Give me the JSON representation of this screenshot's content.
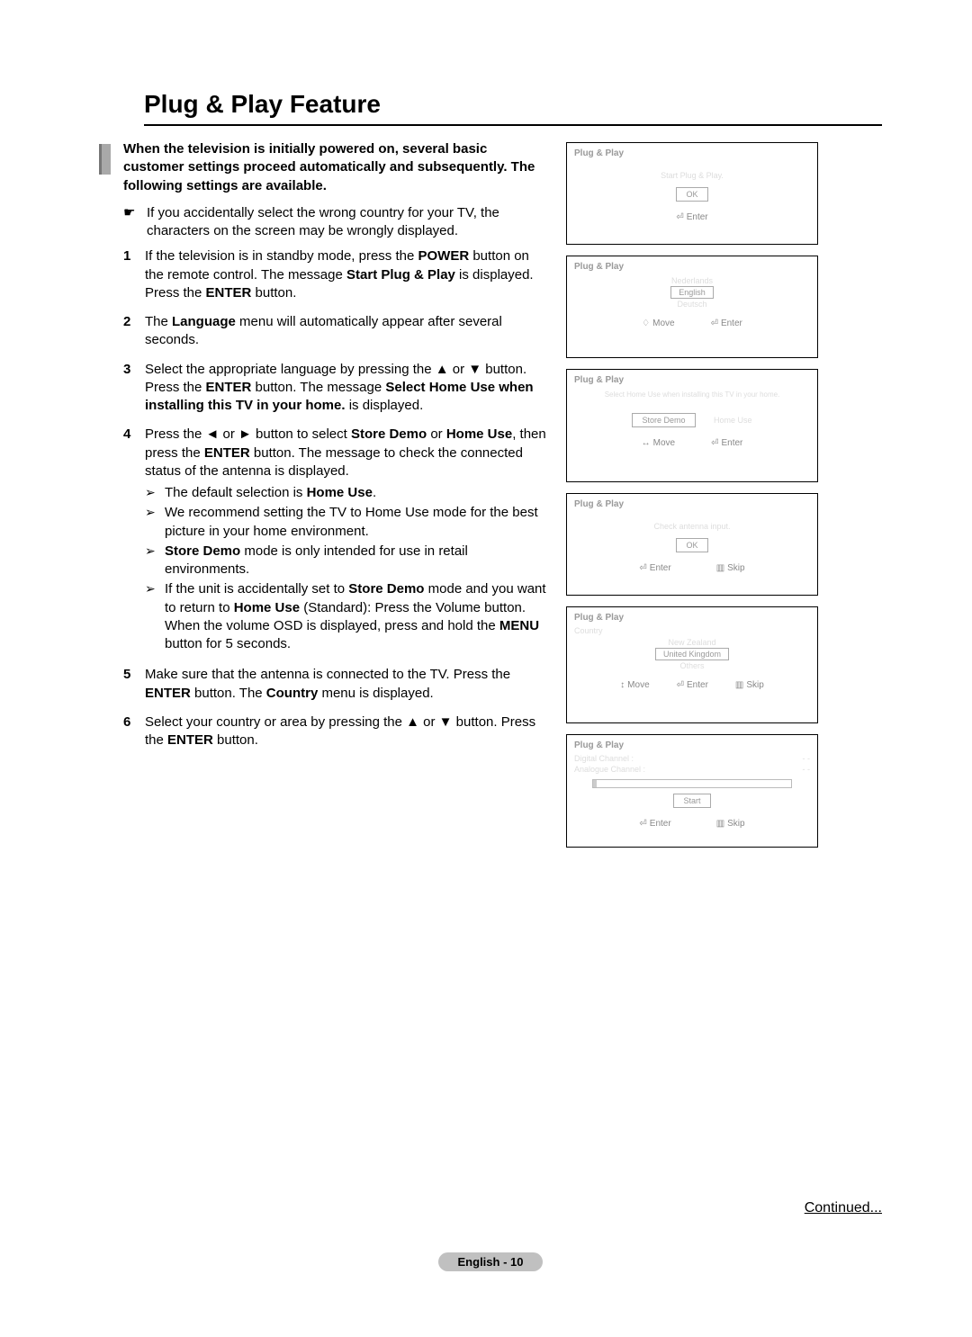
{
  "title": "Plug & Play Feature",
  "intro": "When the television is initially powered on, several basic customer settings proceed automatically and subsequently. The following settings are available.",
  "note": "If you accidentally select the wrong country for your TV, the characters on the screen may be wrongly displayed.",
  "steps": {
    "s1": "If the television is in standby mode, press the <b>POWER</b> button on the remote control. The message <b>Start Plug & Play</b> is displayed. Press the <b>ENTER</b> button.",
    "s2": "The <b>Language</b> menu will automatically appear after several seconds.",
    "s3a": "Select the appropriate language by pressing the ▲ or ▼ button.",
    "s3b": "Press the <b>ENTER</b> button. The message <b>Select Home Use when installing this TV in your home.</b> is displayed.",
    "s4": "Press the ◄ or ► button to select <b>Store Demo</b> or <b>Home Use</b>, then press the <b>ENTER</b> button. The message to check the connected status of the antenna is displayed.",
    "s4_a": "The default selection is <b>Home Use</b>.",
    "s4_b": "We recommend setting the TV to Home Use mode for the best picture in your home environment.",
    "s4_c": "<b>Store Demo</b> mode is only intended for use in retail environments.",
    "s4_d": "If the unit is accidentally set to <b>Store Demo</b> mode and you want to return to <b>Home Use</b> (Standard): Press the Volume button. When the volume OSD is displayed, press and hold the <b>MENU</b> button for 5 seconds.",
    "s5": "Make sure that the antenna is connected to the TV. Press the <b>ENTER</b> button. The <b>Country</b> menu is displayed.",
    "s6": "Select your country or area by pressing the ▲ or ▼ button. Press the <b>ENTER</b> button."
  },
  "screens": {
    "sc1": {
      "title": "Plug & Play",
      "msg": "Start Plug & Play.",
      "btn": "OK",
      "enter": "Enter"
    },
    "sc2": {
      "title": "Plug & Play",
      "options": [
        "Nederlands",
        "English",
        "Deutsch"
      ],
      "highlight": "English",
      "move": "Move",
      "enter": "Enter"
    },
    "sc3": {
      "title": "Plug & Play",
      "msg": "Select Home Use when installing this TV in your home.",
      "left": "Store Demo",
      "right": "Home Use",
      "move": "Move",
      "enter": "Enter"
    },
    "sc4": {
      "title": "Plug & Play",
      "msg": "Check antenna input.",
      "btn": "OK",
      "enter": "Enter",
      "skip": "Skip"
    },
    "sc5": {
      "title": "Plug & Play",
      "line": "Country",
      "options": [
        "New Zealand",
        "United Kingdom",
        "Others"
      ],
      "highlight": "United Kingdom",
      "move": "Move",
      "enter": "Enter",
      "skip": "Skip"
    },
    "sc6": {
      "title": "Plug & Play",
      "rows": [
        {
          "l": "Digital Channel :",
          "r": "- -"
        },
        {
          "l": "Analogue Channel :",
          "r": "- -"
        }
      ],
      "btn": "Start",
      "enter": "Enter",
      "skip": "Skip"
    }
  },
  "continued": "Continued...",
  "footer": "English - 10"
}
